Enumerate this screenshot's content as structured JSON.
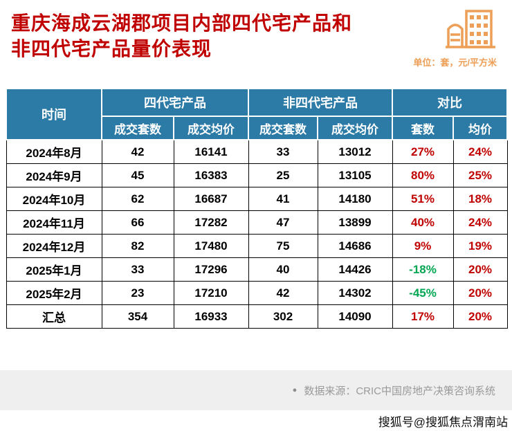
{
  "header": {
    "title_line1": "重庆海成云湖郡项目内部四代宅产品和",
    "title_line2": "非四代宅产品量价表现",
    "unit_label": "单位：套，元/平方米"
  },
  "footer": {
    "source_bullet": "●",
    "source": "数据来源：CRIC中国房地产决策咨询系统",
    "attribution": "搜狐号@搜狐焦点渭南站"
  },
  "colors": {
    "title_red": "#c00000",
    "header_blue": "#2c7ba6",
    "positive_red": "#c00000",
    "negative_green": "#00a651",
    "accent_orange": "#ed9f57"
  },
  "chart_data": {
    "type": "table",
    "title": "重庆海成云湖郡项目内部四代宅产品和非四代宅产品量价表现",
    "unit": "单位：套，元/平方米",
    "column_groups": [
      {
        "label": "时间",
        "rowspan": 2
      },
      {
        "label": "四代宅产品",
        "colspan": 2
      },
      {
        "label": "非四代宅产品",
        "colspan": 2
      },
      {
        "label": "对比",
        "colspan": 2
      }
    ],
    "sub_headers": [
      "成交套数",
      "成交均价",
      "成交套数",
      "成交均价",
      "套数",
      "均价"
    ],
    "rows": [
      {
        "time": "2024年8月",
        "values": [
          "42",
          "16141",
          "33",
          "13012"
        ],
        "compare": [
          "27%",
          "24%"
        ]
      },
      {
        "time": "2024年9月",
        "values": [
          "45",
          "16383",
          "25",
          "13105"
        ],
        "compare": [
          "80%",
          "25%"
        ]
      },
      {
        "time": "2024年10月",
        "values": [
          "62",
          "16687",
          "41",
          "14180"
        ],
        "compare": [
          "51%",
          "18%"
        ]
      },
      {
        "time": "2024年11月",
        "values": [
          "66",
          "17282",
          "47",
          "13899"
        ],
        "compare": [
          "40%",
          "24%"
        ]
      },
      {
        "time": "2024年12月",
        "values": [
          "82",
          "17480",
          "75",
          "14686"
        ],
        "compare": [
          "9%",
          "19%"
        ]
      },
      {
        "time": "2025年1月",
        "values": [
          "33",
          "17296",
          "40",
          "14426"
        ],
        "compare": [
          "-18%",
          "20%"
        ]
      },
      {
        "time": "2025年2月",
        "values": [
          "23",
          "17210",
          "42",
          "14302"
        ],
        "compare": [
          "-45%",
          "20%"
        ]
      },
      {
        "time": "汇总",
        "values": [
          "354",
          "16933",
          "302",
          "14090"
        ],
        "compare": [
          "17%",
          "20%"
        ]
      }
    ]
  }
}
